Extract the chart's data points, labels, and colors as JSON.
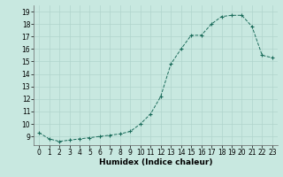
{
  "x": [
    0,
    1,
    2,
    3,
    4,
    5,
    6,
    7,
    8,
    9,
    10,
    11,
    12,
    13,
    14,
    15,
    16,
    17,
    18,
    19,
    20,
    21,
    22,
    23
  ],
  "y": [
    9.3,
    8.8,
    8.6,
    8.7,
    8.8,
    8.9,
    9.0,
    9.1,
    9.2,
    9.4,
    10.0,
    10.8,
    12.2,
    14.8,
    16.0,
    17.1,
    17.1,
    18.0,
    18.6,
    18.7,
    18.7,
    17.8,
    15.5,
    15.3
  ],
  "xlabel": "Humidex (Indice chaleur)",
  "xlim": [
    -0.5,
    23.5
  ],
  "ylim": [
    8.3,
    19.5
  ],
  "yticks": [
    9,
    10,
    11,
    12,
    13,
    14,
    15,
    16,
    17,
    18,
    19
  ],
  "xticks": [
    0,
    1,
    2,
    3,
    4,
    5,
    6,
    7,
    8,
    9,
    10,
    11,
    12,
    13,
    14,
    15,
    16,
    17,
    18,
    19,
    20,
    21,
    22,
    23
  ],
  "line_color": "#1a6b5a",
  "marker_size": 3,
  "bg_color": "#c8e8e0",
  "grid_color": "#b0d4cc",
  "tick_fontsize": 5.5,
  "xlabel_fontsize": 6.5
}
